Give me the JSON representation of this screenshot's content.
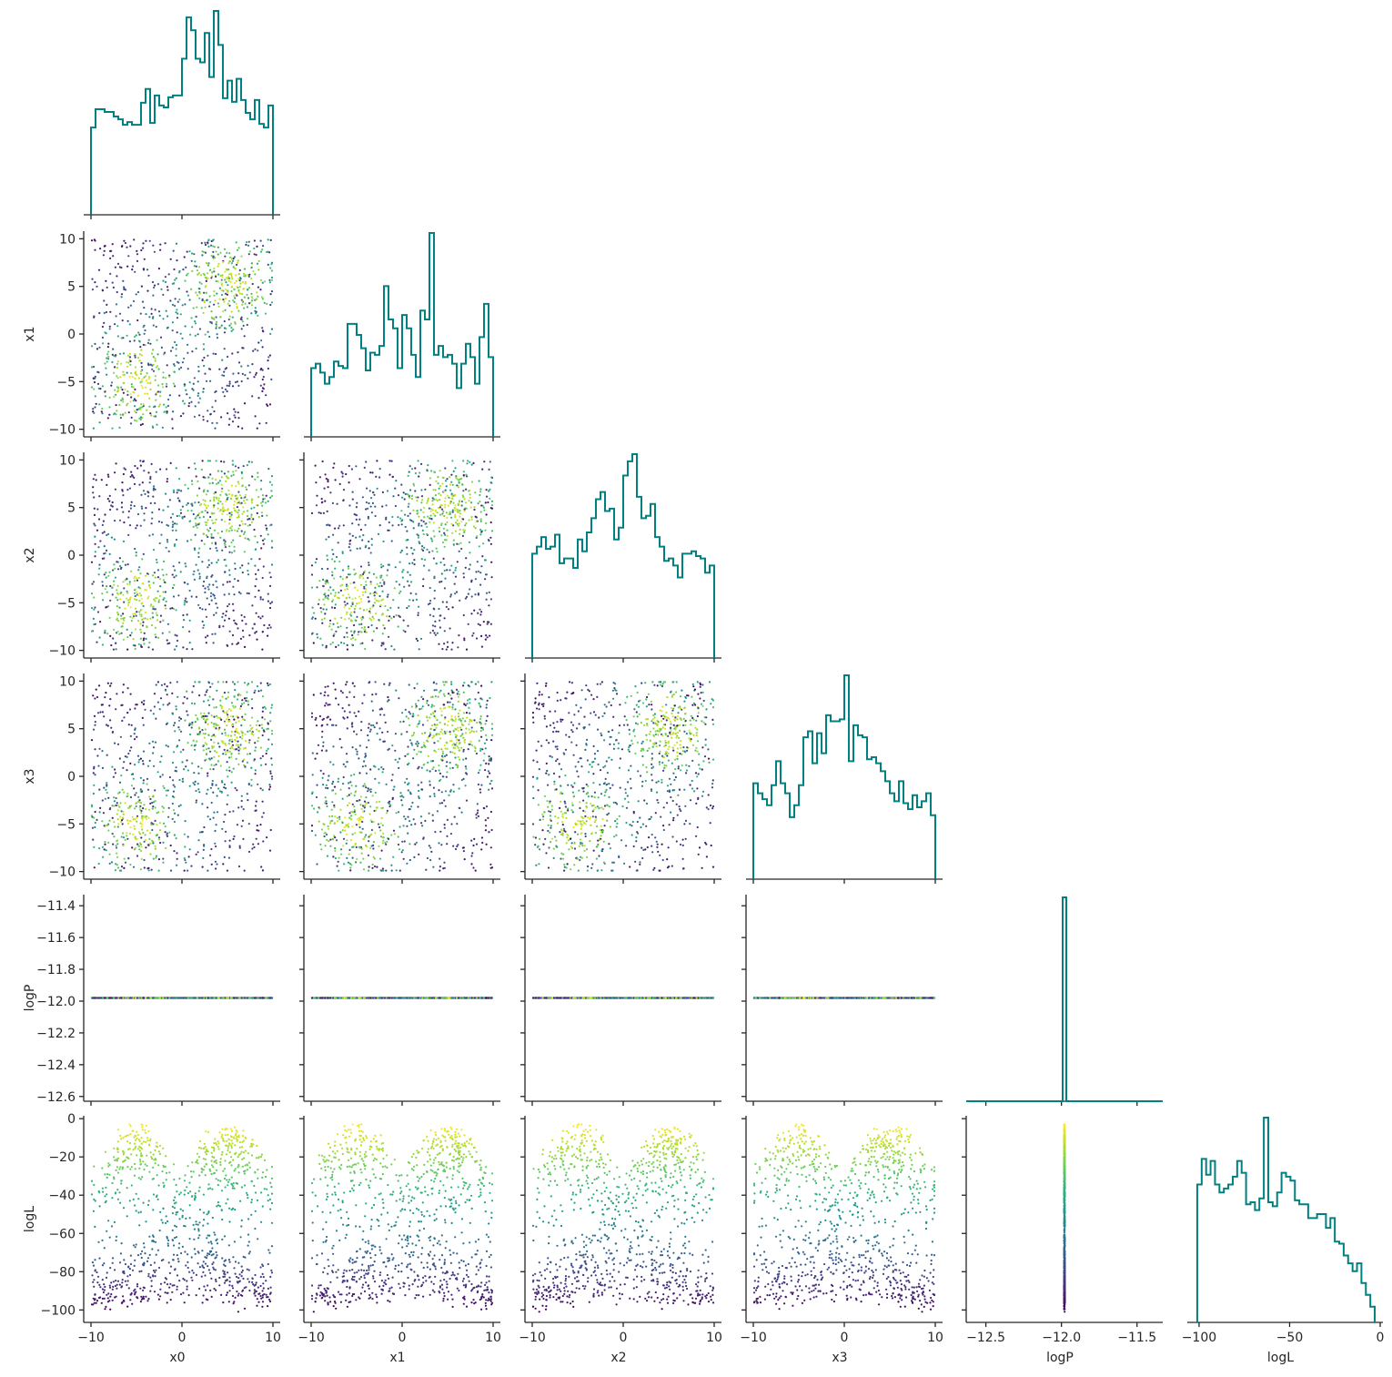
{
  "chart_data": {
    "type": "scatter",
    "layout": "corner-plot",
    "title": "",
    "variables": [
      "x0",
      "x1",
      "x2",
      "x3",
      "logP",
      "logL"
    ],
    "axis_ranges": {
      "x0": [
        -10.8,
        10.8
      ],
      "x1": [
        -10.8,
        10.8
      ],
      "x2": [
        -10.8,
        10.8
      ],
      "x3": [
        -10.8,
        10.8
      ],
      "logP": [
        -12.63,
        -11.33
      ],
      "logL": [
        -106.5,
        1.5
      ]
    },
    "ticks": {
      "x0": [
        -10,
        -5,
        0,
        5,
        10
      ],
      "x1": [
        -10,
        -5,
        0,
        5,
        10
      ],
      "x2": [
        -10,
        -5,
        0,
        5,
        10
      ],
      "x3": [
        -10,
        -5,
        0,
        5,
        10
      ],
      "logP": [
        -12.6,
        -12.4,
        -12.2,
        -12.0,
        -11.8,
        -11.6,
        -11.4
      ],
      "logL": [
        -100,
        -80,
        -60,
        -40,
        -20,
        0
      ]
    },
    "bottom_ticks": {
      "x0": [
        "−10",
        "0",
        "10"
      ],
      "x1": [
        "−10",
        "0",
        "10"
      ],
      "x2": [
        "−10",
        "0",
        "10"
      ],
      "x3": [
        "−10",
        "0",
        "10"
      ],
      "logP": [
        "−12.5",
        "−12.0",
        "−11.5"
      ],
      "logL": [
        "−100",
        "−50",
        "0"
      ]
    },
    "bottom_tick_values": {
      "x0": [
        -10,
        0,
        10
      ],
      "x1": [
        -10,
        0,
        10
      ],
      "x2": [
        -10,
        0,
        10
      ],
      "x3": [
        -10,
        0,
        10
      ],
      "logP": [
        -12.5,
        -12.0,
        -11.5
      ],
      "logL": [
        -100,
        -50,
        0
      ]
    },
    "left_tick_labels": {
      "x1": [
        "−10",
        "−5",
        "0",
        "5",
        "10"
      ],
      "x2": [
        "−10",
        "−5",
        "0",
        "5",
        "10"
      ],
      "x3": [
        "−10",
        "−5",
        "0",
        "5",
        "10"
      ],
      "logP": [
        "−12.6",
        "−12.4",
        "−12.2",
        "−12.0",
        "−11.8",
        "−11.6",
        "−11.4"
      ],
      "logL": [
        "−100",
        "−80",
        "−60",
        "−40",
        "−20",
        "0"
      ]
    },
    "histograms": {
      "x0": {
        "bins": 40,
        "heights": [
          95,
          115,
          115,
          112,
          112,
          107,
          104,
          98,
          101,
          98,
          98,
          122,
          137,
          100,
          130,
          119,
          117,
          128,
          130,
          130,
          170,
          215,
          201,
          170,
          166,
          198,
          150,
          222,
          185,
          127,
          146,
          123,
          148,
          125,
          111,
          104,
          125,
          99,
          95,
          119
        ]
      },
      "x1": {
        "bins": 40,
        "heights": [
          31,
          33,
          29,
          24,
          27,
          34,
          32,
          31,
          51,
          51,
          46,
          40,
          30,
          38,
          37,
          41,
          68,
          53,
          49,
          31,
          55,
          49,
          37,
          27,
          57,
          53,
          92,
          37,
          41,
          36,
          37,
          33,
          22,
          33,
          42,
          36,
          24,
          45,
          60,
          36
        ]
      },
      "x2": {
        "bins": 40,
        "heights": [
          44,
          47,
          51,
          46,
          47,
          52,
          40,
          42,
          42,
          38,
          50,
          45,
          53,
          59,
          67,
          70,
          62,
          63,
          50,
          55,
          77,
          83,
          86,
          68,
          59,
          60,
          65,
          51,
          47,
          41,
          42,
          39,
          34,
          44,
          44,
          45,
          43,
          42,
          36,
          39
        ]
      },
      "x3": {
        "bins": 40,
        "heights": [
          48,
          43,
          40,
          37,
          47,
          59,
          48,
          43,
          31,
          37,
          47,
          71,
          74,
          58,
          73,
          63,
          82,
          79,
          79,
          80,
          102,
          59,
          77,
          72,
          71,
          60,
          61,
          58,
          54,
          49,
          43,
          39,
          49,
          38,
          35,
          42,
          36,
          39,
          43,
          32
        ]
      },
      "logP": {
        "bins": 1,
        "value": -11.98,
        "height": 1000
      },
      "logL": {
        "bins": 40,
        "heights": [
          70,
          83,
          75,
          82,
          70,
          66,
          68,
          70,
          74,
          82,
          76,
          60,
          61,
          57,
          63,
          104,
          61,
          59,
          66,
          76,
          74,
          72,
          62,
          60,
          60,
          53,
          53,
          55,
          55,
          48,
          53,
          41,
          40,
          34,
          30,
          26,
          30,
          20,
          14,
          8
        ]
      }
    },
    "scatter": {
      "points": 1000,
      "point_size": 1.5,
      "color_by": "logL",
      "colormap": "viridis",
      "color_range": [
        -101,
        -3
      ],
      "constant_logP": -11.98
    },
    "colors": {
      "histogram": "#008080",
      "axis": "#262626",
      "background": "#ffffff",
      "viridis": [
        "#440154",
        "#482878",
        "#3e4989",
        "#31688e",
        "#26828e",
        "#1f9e89",
        "#35b779",
        "#6ece58",
        "#b5de2b",
        "#fde725"
      ]
    }
  }
}
